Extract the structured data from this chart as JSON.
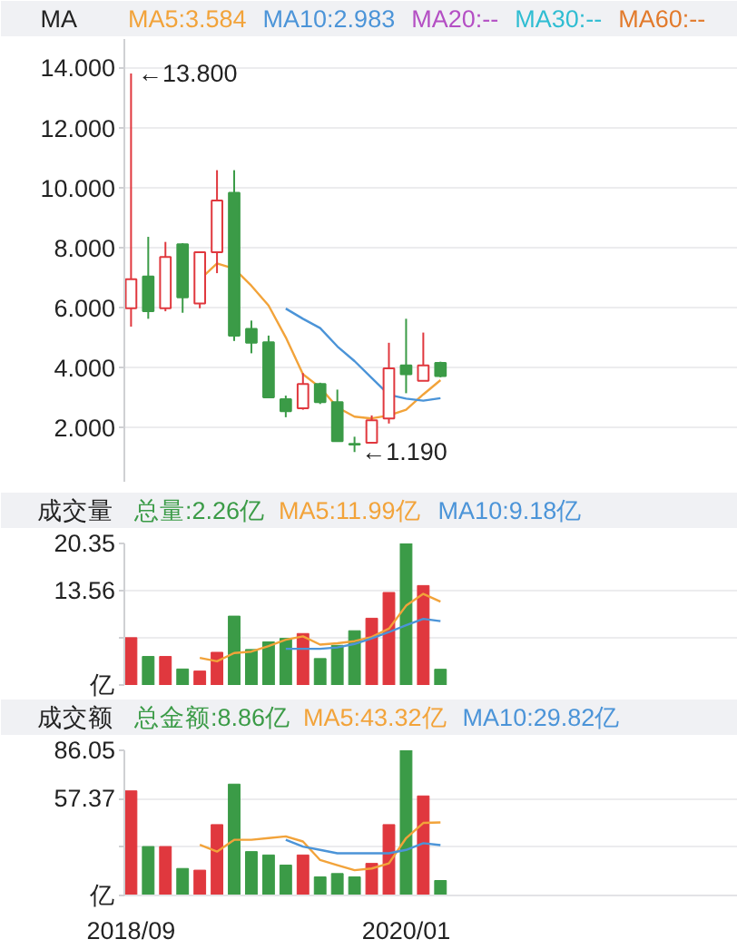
{
  "chart_data": [
    {
      "type": "candlestick",
      "title": "MA",
      "legend": "top",
      "grid": "y",
      "tick_labels": "y",
      "categories": [
        "2018/09",
        null,
        null,
        null,
        null,
        null,
        null,
        null,
        null,
        null,
        null,
        null,
        null,
        null,
        null,
        null,
        "2020/01",
        null,
        null
      ],
      "ohlc": [
        [
          5.98,
          13.8,
          5.37,
          6.95
        ],
        [
          7.04,
          8.36,
          5.63,
          5.88
        ],
        [
          5.98,
          8.19,
          5.88,
          7.69
        ],
        [
          8.11,
          8.15,
          5.83,
          6.34
        ],
        [
          6.14,
          7.85,
          5.98,
          7.85
        ],
        [
          7.85,
          10.58,
          7.15,
          9.57
        ],
        [
          9.83,
          10.58,
          4.89,
          5.07
        ],
        [
          5.29,
          5.57,
          4.48,
          4.83
        ],
        [
          4.85,
          5.07,
          3.0,
          3.01
        ],
        [
          2.95,
          3.07,
          2.35,
          2.55
        ],
        [
          2.65,
          3.82,
          2.6,
          3.46
        ],
        [
          3.46,
          3.5,
          2.79,
          2.85
        ],
        [
          2.85,
          3.27,
          1.54,
          1.55
        ],
        [
          1.46,
          1.7,
          1.19,
          1.44
        ],
        [
          1.5,
          2.41,
          1.5,
          2.25
        ],
        [
          2.31,
          4.83,
          2.14,
          3.98
        ],
        [
          4.08,
          5.63,
          3.15,
          3.78
        ],
        [
          3.56,
          5.17,
          3.56,
          4.08
        ],
        [
          4.16,
          4.2,
          3.68,
          3.72
        ]
      ],
      "colors": [
        "#e0383e",
        "#3b9b47",
        "#e0383e",
        "#3b9b47",
        "#e0383e",
        "#e0383e",
        "#3b9b47",
        "#3b9b47",
        "#3b9b47",
        "#3b9b47",
        "#e0383e",
        "#3b9b47",
        "#3b9b47",
        "#3b9b47",
        "#e0383e",
        "#e0383e",
        "#3b9b47",
        "#e0383e",
        "#3b9b47"
      ],
      "series": [
        {
          "name": "MA5:3.584",
          "type": "line",
          "color": "#f2a33a",
          "values": [
            null,
            null,
            null,
            null,
            6.94,
            7.47,
            7.3,
            6.73,
            6.07,
            5.01,
            3.78,
            3.34,
            2.68,
            2.37,
            2.31,
            2.41,
            2.6,
            3.11,
            3.584
          ]
        },
        {
          "name": "MA10:2.983",
          "type": "line",
          "color": "#4b94d8",
          "values": [
            null,
            null,
            null,
            null,
            null,
            null,
            null,
            null,
            null,
            5.97,
            5.63,
            5.32,
            4.71,
            4.22,
            3.66,
            3.1,
            2.97,
            2.9,
            2.983
          ]
        },
        {
          "name": "MA20:--",
          "type": "line",
          "color": "#b44fc4",
          "values": [
            null,
            null,
            null,
            null,
            null,
            null,
            null,
            null,
            null,
            null,
            null,
            null,
            null,
            null,
            null,
            null,
            null,
            null,
            null
          ]
        },
        {
          "name": "MA30:--",
          "type": "line",
          "color": "#2fbdd2",
          "values": [
            null,
            null,
            null,
            null,
            null,
            null,
            null,
            null,
            null,
            null,
            null,
            null,
            null,
            null,
            null,
            null,
            null,
            null,
            null
          ]
        },
        {
          "name": "MA60:--",
          "type": "line",
          "color": "#e27a2b",
          "values": [
            null,
            null,
            null,
            null,
            null,
            null,
            null,
            null,
            null,
            null,
            null,
            null,
            null,
            null,
            null,
            null,
            null,
            null,
            null
          ]
        }
      ],
      "ylim": [
        0.2,
        14.95
      ],
      "yticks": [
        {
          "value": 2,
          "label": "2.000"
        },
        {
          "value": 4,
          "label": "4.000"
        },
        {
          "value": 6,
          "label": "6.000"
        },
        {
          "value": 8,
          "label": "8.000"
        },
        {
          "value": 10,
          "label": "10.000"
        },
        {
          "value": 12,
          "label": "12.000"
        },
        {
          "value": 14,
          "label": "14.000"
        }
      ],
      "annotations": [
        {
          "text": "←13.800",
          "x": "2018/09",
          "y": 13.8
        },
        "←1.190"
      ]
    },
    {
      "type": "bar",
      "title": "成交量",
      "legend": "top",
      "grid": "y",
      "tick_labels": "y",
      "categories": [
        "2018/09",
        null,
        null,
        null,
        null,
        null,
        null,
        null,
        null,
        null,
        null,
        null,
        null,
        null,
        null,
        null,
        "2020/01",
        null,
        null
      ],
      "series": [
        {
          "name": "总量:2.26亿",
          "type": "bar",
          "colors": [
            "#e0383e",
            "#3b9b47",
            "#e0383e",
            "#3b9b47",
            "#e0383e",
            "#e0383e",
            "#3b9b47",
            "#3b9b47",
            "#3b9b47",
            "#3b9b47",
            "#e0383e",
            "#3b9b47",
            "#3b9b47",
            "#3b9b47",
            "#e0383e",
            "#e0383e",
            "#3b9b47",
            "#e0383e",
            "#3b9b47"
          ],
          "values": [
            6.8,
            4.1,
            4.1,
            2.3,
            2.0,
            4.7,
            9.9,
            5.1,
            6.2,
            6.7,
            7.4,
            3.8,
            5.7,
            7.8,
            9.6,
            13.3,
            20.35,
            14.3,
            2.26
          ]
        },
        {
          "name": "MA5:11.99亿",
          "type": "line",
          "color": "#f2a33a",
          "values": [
            null,
            null,
            null,
            null,
            3.9,
            3.4,
            4.6,
            4.8,
            5.6,
            6.5,
            7.0,
            5.8,
            6.0,
            6.3,
            6.9,
            8.1,
            11.4,
            13.1,
            11.99
          ]
        },
        {
          "name": "MA10:9.18亿",
          "type": "line",
          "color": "#4b94d8",
          "values": [
            null,
            null,
            null,
            null,
            null,
            null,
            null,
            null,
            null,
            5.2,
            5.2,
            5.2,
            5.4,
            5.9,
            6.7,
            7.6,
            8.6,
            9.5,
            9.18
          ]
        }
      ],
      "ylim": [
        0,
        20.35
      ],
      "yticks": [
        {
          "value": 0,
          "label": "亿"
        },
        {
          "value": 6.78,
          "label": null
        },
        13.56,
        20.35
      ]
    },
    {
      "type": "bar",
      "title": "成交额",
      "legend": "top",
      "grid": "y",
      "categories": [
        "2018/09",
        null,
        null,
        null,
        null,
        null,
        null,
        null,
        null,
        null,
        null,
        null,
        null,
        null,
        null,
        null,
        "2020/01",
        null,
        null
      ],
      "series": [
        {
          "name": "总金额:8.86亿",
          "type": "bar",
          "colors": [
            "#e0383e",
            "#3b9b47",
            "#e0383e",
            "#3b9b47",
            "#e0383e",
            "#e0383e",
            "#3b9b47",
            "#3b9b47",
            "#3b9b47",
            "#3b9b47",
            "#e0383e",
            "#3b9b47",
            "#3b9b47",
            "#3b9b47",
            "#e0383e",
            "#e0383e",
            "#3b9b47",
            "#e0383e",
            "#3b9b47"
          ],
          "values": [
            62,
            29,
            29,
            16,
            15,
            42,
            66,
            26,
            24,
            18,
            24,
            11,
            13,
            11,
            19,
            42,
            86.05,
            59,
            8.86
          ]
        },
        {
          "name": "MA5:43.32亿",
          "type": "line",
          "color": "#f2a33a",
          "values": [
            null,
            null,
            null,
            null,
            30,
            26,
            33,
            33,
            34,
            35,
            32,
            21,
            18,
            15,
            16,
            19,
            34,
            43,
            43.32
          ]
        },
        {
          "name": "MA10:29.82亿",
          "type": "line",
          "color": "#4b94d8",
          "values": [
            null,
            null,
            null,
            null,
            null,
            null,
            null,
            null,
            null,
            33,
            29,
            27,
            25,
            25,
            25,
            25,
            27,
            31,
            29.82
          ]
        }
      ],
      "ylim": [
        0,
        86.05
      ],
      "yticks": [
        {
          "value": 0,
          "label": "亿"
        },
        {
          "value": 28.68,
          "label": null
        },
        57.37,
        86.05
      ]
    }
  ]
}
